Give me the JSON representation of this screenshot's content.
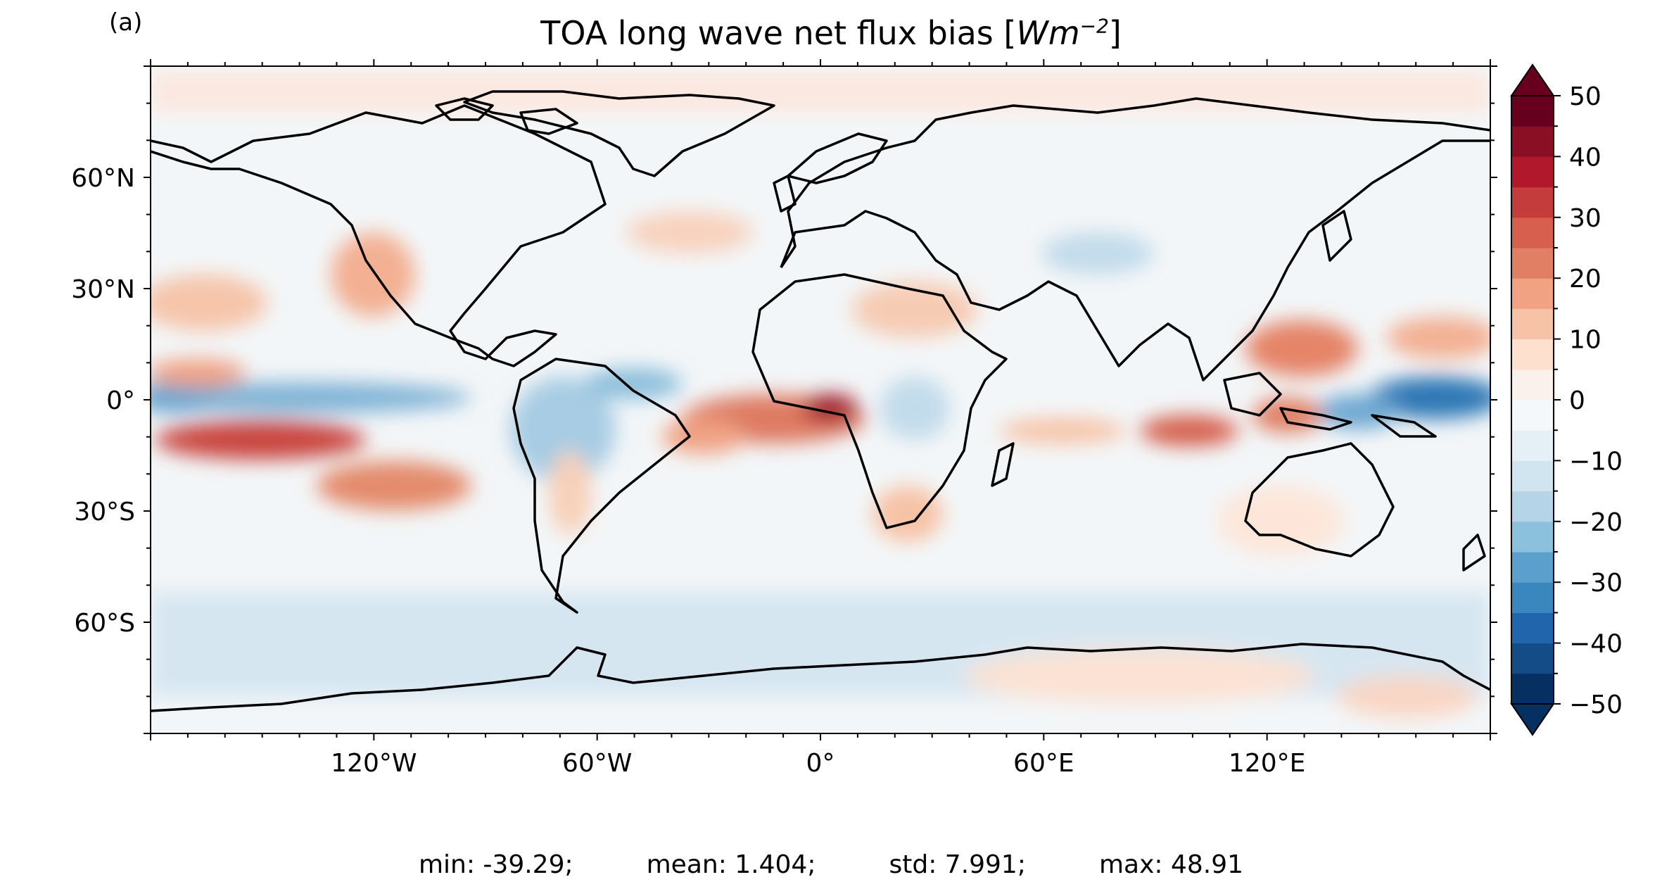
{
  "panel_label": "(a)",
  "title": {
    "text": "TOA long wave net flux bias [",
    "unit_base": "Wm",
    "unit_exp": "−2",
    "close": "]"
  },
  "map_axes": {
    "lon_ticks": [
      {
        "lon": -120,
        "label": "120°W"
      },
      {
        "lon": -60,
        "label": "60°W"
      },
      {
        "lon": 0,
        "label": "0°"
      },
      {
        "lon": 60,
        "label": "60°E"
      },
      {
        "lon": 120,
        "label": "120°E"
      }
    ],
    "lat_ticks": [
      {
        "lat": 60,
        "label": "60°N"
      },
      {
        "lat": 30,
        "label": "30°N"
      },
      {
        "lat": 0,
        "label": "0°"
      },
      {
        "lat": -30,
        "label": "30°S"
      },
      {
        "lat": -60,
        "label": "60°S"
      }
    ],
    "lon_range": [
      -180,
      180
    ],
    "lat_range": [
      -90,
      90
    ]
  },
  "colorbar": {
    "min": -50,
    "max": 50,
    "step": 5,
    "extend": "both",
    "ticks": [
      50,
      40,
      30,
      20,
      10,
      0,
      -10,
      -20,
      -30,
      -40,
      -50
    ],
    "tick_labels": [
      "50",
      "40",
      "30",
      "20",
      "10",
      "0",
      "−10",
      "−20",
      "−30",
      "−40",
      "−50"
    ],
    "colors": [
      "#053061",
      "#134c87",
      "#2166ac",
      "#3a87bd",
      "#5b9fcc",
      "#8bc1dd",
      "#b5d4e7",
      "#d1e5f0",
      "#e5eff6",
      "#f4f8fa",
      "#fbf1ec",
      "#fde0cd",
      "#f7c3a6",
      "#f0a283",
      "#e07f64",
      "#d6604d",
      "#c43c3c",
      "#b2182b",
      "#8a0f24",
      "#67001f"
    ],
    "extend_low_color": "#053061",
    "extend_high_color": "#67001f"
  },
  "stats": {
    "min": "min: -39.29;",
    "mean": "mean: 1.404;",
    "std": "std: 7.991;",
    "max": "max: 48.91"
  }
}
